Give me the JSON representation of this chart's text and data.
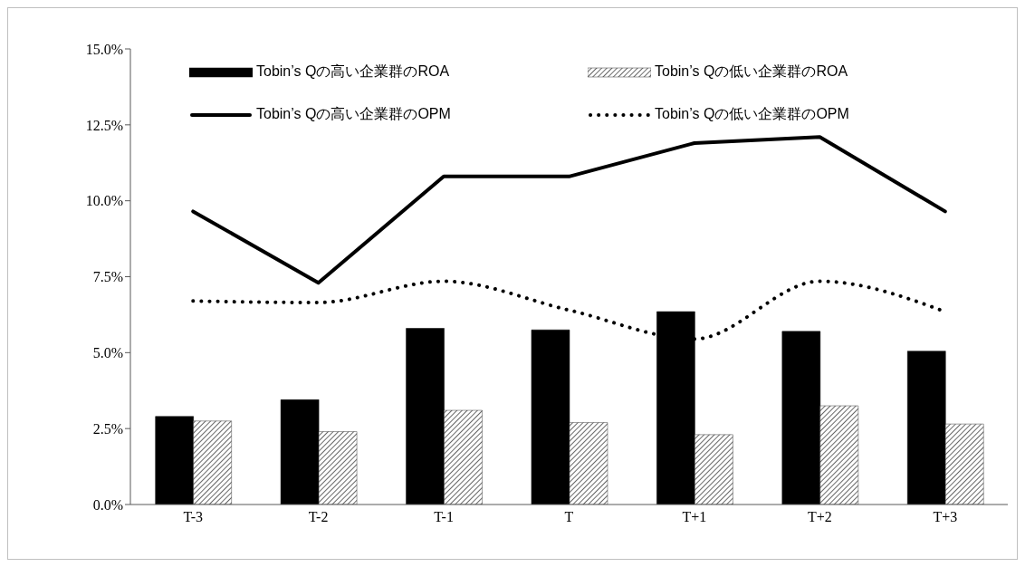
{
  "chart_data": {
    "type": "bar",
    "categories": [
      "T-3",
      "T-2",
      "T-1",
      "T",
      "T+1",
      "T+2",
      "T+3"
    ],
    "ylim": [
      0,
      15
    ],
    "yticks": [
      {
        "value": 0,
        "label": "0.0%"
      },
      {
        "value": 2.5,
        "label": "2.5%"
      },
      {
        "value": 5,
        "label": "5.0%"
      },
      {
        "value": 7.5,
        "label": "7.5%"
      },
      {
        "value": 10,
        "label": "10.0%"
      },
      {
        "value": 12.5,
        "label": "12.5%"
      },
      {
        "value": 15,
        "label": "15.0%"
      }
    ],
    "grid": false,
    "legend": "top",
    "series": [
      {
        "name": "Tobin’s Qの高い企業群のROA",
        "color": "#000000",
        "values": [
          2.9,
          3.45,
          5.8,
          5.75,
          6.35,
          5.7,
          5.05
        ]
      },
      {
        "name": "Tobin’s Qの低い企業群のROA",
        "color": "#404040",
        "values": [
          2.75,
          2.4,
          3.1,
          2.7,
          2.3,
          3.25,
          2.65
        ]
      },
      {
        "name": "Tobin’s Qの高い企業群のOPM",
        "type": "line",
        "color": "#000000",
        "line_style": "solid",
        "values": [
          9.65,
          7.3,
          10.8,
          10.8,
          11.9,
          12.1,
          9.65
        ]
      },
      {
        "name": "Tobin’s Qの低い企業群のOPM",
        "type": "line",
        "color": "#000000",
        "line_style": "dotted",
        "values": [
          6.7,
          6.65,
          7.35,
          6.4,
          5.45,
          7.35,
          6.35
        ]
      }
    ]
  }
}
